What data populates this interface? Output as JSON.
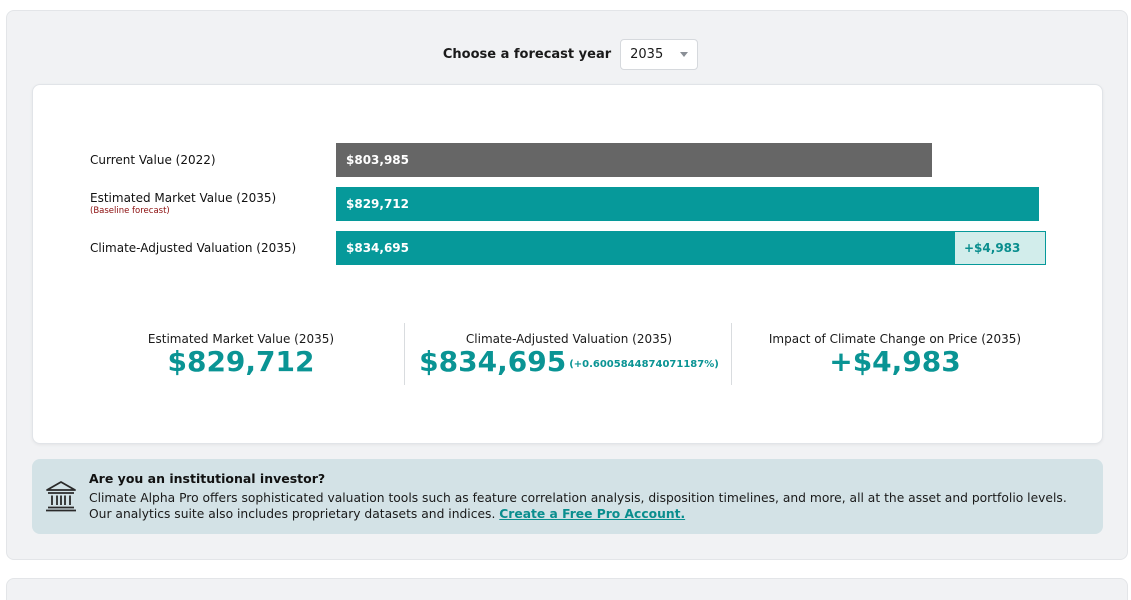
{
  "forecast": {
    "label": "Choose a forecast year",
    "selected_year": "2035"
  },
  "bars": {
    "current": {
      "label": "Current Value (2022)",
      "value_text": "$803,985",
      "value": 803985
    },
    "estimated": {
      "label": "Estimated Market Value (2035)",
      "sublabel": "(Baseline forecast)",
      "value_text": "$829,712",
      "value": 829712
    },
    "climate": {
      "label": "Climate-Adjusted Valuation (2035)",
      "value_text": "$834,695",
      "value": 834695,
      "delta_text": "+$4,983"
    }
  },
  "stats": {
    "estimated": {
      "title": "Estimated Market Value (2035)",
      "value": "$829,712"
    },
    "climate": {
      "title": "Climate-Adjusted Valuation (2035)",
      "value": "$834,695",
      "pct": "(+0.6005844874071187%)"
    },
    "impact": {
      "title": "Impact of Climate Change on Price (2035)",
      "value": "+$4,983"
    }
  },
  "info": {
    "icon": "institution-icon",
    "title": "Are you an institutional investor?",
    "text": "Climate Alpha Pro offers sophisticated valuation tools such as feature correlation analysis, disposition timelines, and more, all at the asset and portfolio levels. Our analytics suite also includes proprietary datasets and indices. ",
    "link": "Create a Free Pro Account."
  },
  "colors": {
    "teal": "#06999a",
    "gray": "#666666",
    "light_teal": "#d2edeb",
    "info_bg": "#d3e2e6"
  }
}
